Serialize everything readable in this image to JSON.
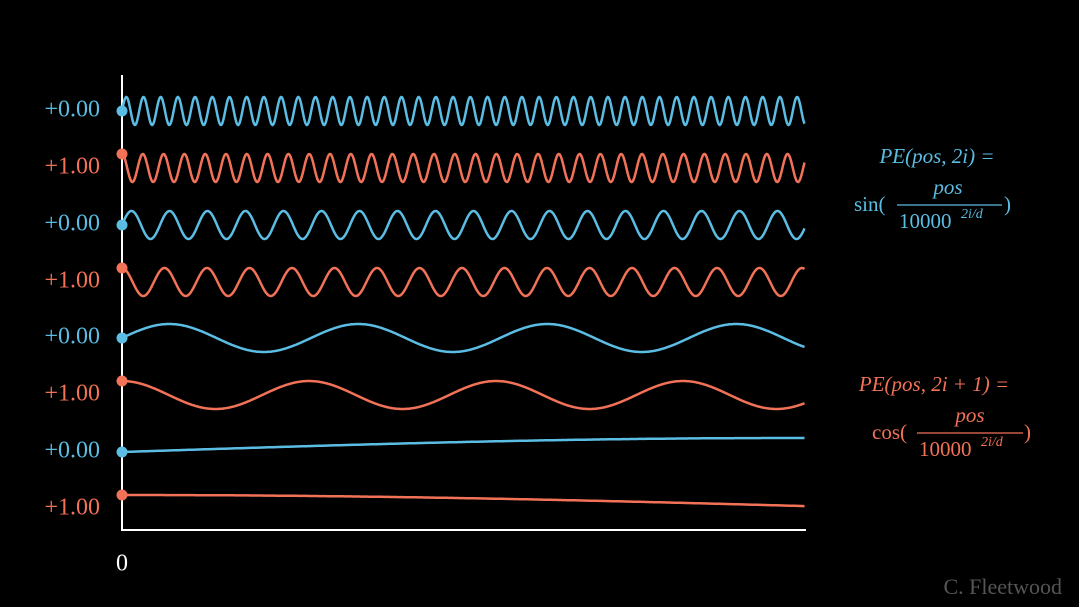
{
  "rows": [
    {
      "label": "+0.00"
    },
    {
      "label": "+1.00"
    },
    {
      "label": "+0.00"
    },
    {
      "label": "+1.00"
    },
    {
      "label": "+0.00"
    },
    {
      "label": "+1.00"
    },
    {
      "label": "+0.00"
    },
    {
      "label": "+1.00"
    }
  ],
  "x_axis_label": "0",
  "formulas": [
    {
      "lhs": "PE(pos, 2i) =",
      "func": "sin(",
      "numerator": "pos",
      "denominator_base": "10000",
      "exponent": "2i/d",
      "close": ")"
    },
    {
      "lhs": "PE(pos, 2i + 1) =",
      "func": "cos(",
      "numerator": "pos",
      "denominator_base": "10000",
      "exponent": "2i/d",
      "close": ")"
    }
  ],
  "credit": "C. Fleetwood"
}
